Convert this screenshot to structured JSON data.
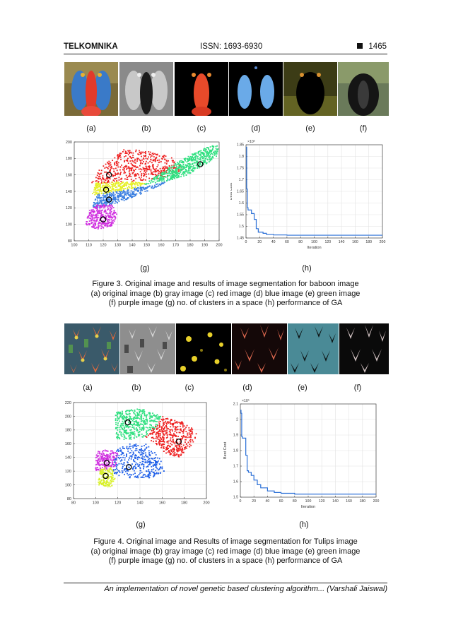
{
  "header": {
    "journal": "TELKOMNIKA",
    "issn": "ISSN: 1693-6930",
    "page": "1465"
  },
  "figure3": {
    "panel_labels": [
      "(a)",
      "(b)",
      "(c)",
      "(d)",
      "(e)",
      "(f)",
      "(g)",
      "(h)"
    ],
    "caption": [
      "Figure 3. Original image and results of image segmentation for baboon image",
      "(a) original image (b) gray image (c) red image (d) blue image (e) green image",
      "(f) purple image (g) no. of clusters in a space (h) performance of GA"
    ]
  },
  "figure4": {
    "panel_labels": [
      "(a)",
      "(b)",
      "(c)",
      "(d)",
      "(e)",
      "(f)",
      "(g)",
      "(h)"
    ],
    "caption": [
      "Figure 4. Original image and Results of image segmentation for Tulips image",
      "(a) original image (b) gray image (c) red image (d) blue image (e) green image",
      "(f) purple image (g) no. of clusters in a space (h) performance of GA"
    ]
  },
  "footer": "An implementation of novel genetic based clustering algorithm... (Varshali Jaiswal)",
  "chart_data": [
    {
      "id": "fig3g",
      "type": "scatter",
      "xlim": [
        100,
        200
      ],
      "ylim": [
        80,
        200
      ],
      "xticks": [
        "100",
        "110",
        "120",
        "130",
        "140",
        "150",
        "160",
        "170",
        "180",
        "190",
        "200"
      ],
      "yticks": [
        "80",
        "100",
        "120",
        "140",
        "160",
        "180",
        "200"
      ],
      "grid": true,
      "clusters": [
        {
          "color": "#ee2020",
          "center": [
            124,
            160
          ]
        },
        {
          "color": "#e6f028",
          "center": [
            122,
            142
          ]
        },
        {
          "color": "#3b7fe0",
          "center": [
            124,
            130
          ]
        },
        {
          "color": "#d030e0",
          "center": [
            120,
            106
          ]
        },
        {
          "color": "#30e080",
          "center": [
            187,
            173
          ]
        }
      ]
    },
    {
      "id": "fig3h",
      "type": "line",
      "xlabel": "Iteration",
      "ylabel": "Best Cost",
      "exponent": "×10⁵",
      "xlim": [
        0,
        200
      ],
      "ylim": [
        1.45,
        1.85
      ],
      "xticks": [
        "0",
        "20",
        "40",
        "60",
        "80",
        "100",
        "120",
        "140",
        "160",
        "180",
        "200"
      ],
      "yticks": [
        "1.45",
        "1.5",
        "1.55",
        "1.6",
        "1.65",
        "1.7",
        "1.75",
        "1.8",
        "1.85"
      ],
      "grid": true,
      "x": [
        0,
        1,
        2,
        3,
        6,
        8,
        10,
        12,
        15,
        18,
        20,
        25,
        30,
        40,
        60,
        100,
        150,
        200
      ],
      "y": [
        1.84,
        1.66,
        1.58,
        1.57,
        1.57,
        1.555,
        1.555,
        1.53,
        1.49,
        1.475,
        1.475,
        1.47,
        1.465,
        1.463,
        1.462,
        1.462,
        1.462,
        1.462
      ]
    },
    {
      "id": "fig4g",
      "type": "scatter",
      "xlim": [
        80,
        200
      ],
      "ylim": [
        80,
        220
      ],
      "xticks": [
        "80",
        "100",
        "120",
        "140",
        "160",
        "180",
        "200"
      ],
      "yticks": [
        "80",
        "100",
        "120",
        "140",
        "160",
        "180",
        "200",
        "220"
      ],
      "grid": true,
      "clusters": [
        {
          "color": "#30e080",
          "center": [
            129,
            191
          ]
        },
        {
          "color": "#ee2020",
          "center": [
            175,
            163
          ]
        },
        {
          "color": "#d030e0",
          "center": [
            110,
            132
          ]
        },
        {
          "color": "#2060e8",
          "center": [
            130,
            126
          ]
        },
        {
          "color": "#d8f028",
          "center": [
            109,
            113
          ]
        }
      ]
    },
    {
      "id": "fig4h",
      "type": "line",
      "xlabel": "Iteration",
      "ylabel": "Best Cost",
      "exponent": "×10⁵",
      "xlim": [
        0,
        200
      ],
      "ylim": [
        1.5,
        2.1
      ],
      "xticks": [
        "0",
        "20",
        "40",
        "60",
        "80",
        "100",
        "120",
        "140",
        "160",
        "180",
        "200"
      ],
      "yticks": [
        "1.5",
        "1.6",
        "1.7",
        "1.8",
        "1.9",
        "2",
        "2.1"
      ],
      "grid": true,
      "x": [
        0,
        1,
        2,
        3,
        6,
        8,
        10,
        12,
        16,
        20,
        25,
        30,
        40,
        50,
        60,
        80,
        100,
        150,
        200
      ],
      "y": [
        2.06,
        2.04,
        1.89,
        1.88,
        1.88,
        1.77,
        1.67,
        1.66,
        1.64,
        1.61,
        1.58,
        1.56,
        1.54,
        1.53,
        1.525,
        1.52,
        1.52,
        1.52,
        1.52
      ]
    }
  ]
}
